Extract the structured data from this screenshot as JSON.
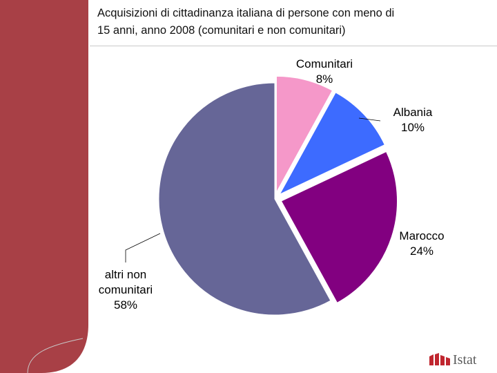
{
  "title_lines": [
    "Acquisizioni di cittadinanza italiana di persone con meno di",
    "15 anni, anno 2008 (comunitari e non comunitari)"
  ],
  "colors": {
    "sidebar": "#a84046",
    "comunitari": "#f598c9",
    "albania": "#3d6bff",
    "marocco": "#820080",
    "altri": "#666697"
  },
  "chart_data": {
    "type": "pie",
    "title": "Acquisizioni di cittadinanza italiana di persone con meno di 15 anni, anno 2008 (comunitari e non comunitari)",
    "slices": [
      {
        "lines": [
          "Comunitari"
        ],
        "pct_label": "8%",
        "value": 8,
        "color": "#f598c9",
        "exploded": true
      },
      {
        "lines": [
          "Albania"
        ],
        "pct_label": "10%",
        "value": 10,
        "color": "#3d6bff",
        "exploded": true
      },
      {
        "lines": [
          "Marocco"
        ],
        "pct_label": "24%",
        "value": 24,
        "color": "#820080",
        "exploded": true
      },
      {
        "lines": [
          "altri non",
          "comunitari"
        ],
        "pct_label": "58%",
        "value": 58,
        "color": "#666697",
        "exploded": false
      }
    ]
  },
  "logo": {
    "text": "Istat",
    "icon": "istat-logo-icon"
  }
}
